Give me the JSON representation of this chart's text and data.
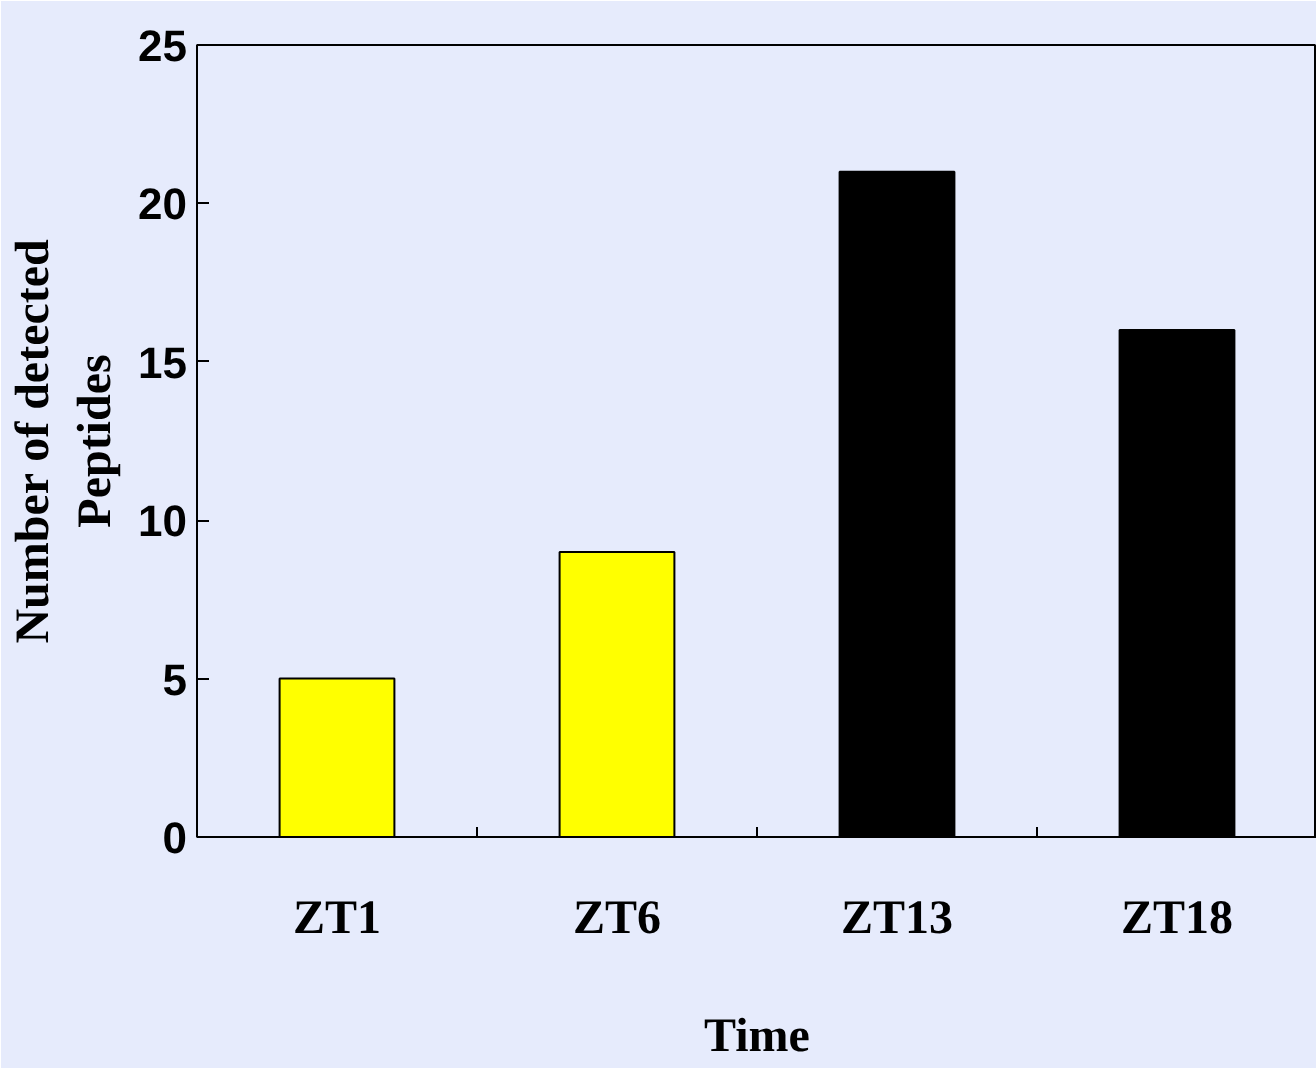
{
  "chart_data": {
    "type": "bar",
    "xlabel": "Time",
    "ylabel": "Number of detected\nPeptides",
    "categories": [
      "ZT1",
      "ZT6",
      "ZT13",
      "ZT18"
    ],
    "values": [
      5,
      9,
      21,
      16
    ],
    "colors": [
      "#ffff00",
      "#ffff00",
      "#000000",
      "#000000"
    ],
    "ylim": [
      0,
      25
    ],
    "yticks": [
      0,
      5,
      10,
      15,
      20,
      25
    ],
    "grid": false
  }
}
